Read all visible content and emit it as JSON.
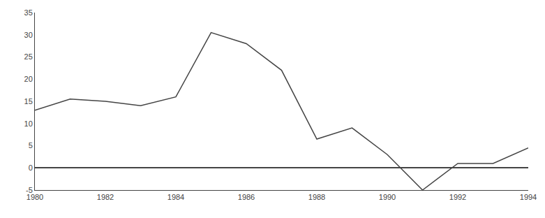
{
  "chart_data": {
    "type": "line",
    "x": [
      1980,
      1981,
      1982,
      1983,
      1984,
      1985,
      1986,
      1987,
      1988,
      1989,
      1990,
      1991,
      1992,
      1993,
      1994
    ],
    "values": [
      13,
      15.5,
      15,
      14,
      16,
      30.5,
      28,
      22,
      6.5,
      9,
      3,
      -5,
      1,
      1,
      4.5
    ],
    "color": "#444444",
    "xlim": [
      1980,
      1994
    ],
    "ylim": [
      -5,
      35
    ],
    "xticks": [
      1980,
      1982,
      1984,
      1986,
      1988,
      1990,
      1992,
      1994
    ],
    "yticks": [
      -5,
      0,
      5,
      10,
      15,
      20,
      25,
      30,
      35
    ],
    "grid": false
  }
}
